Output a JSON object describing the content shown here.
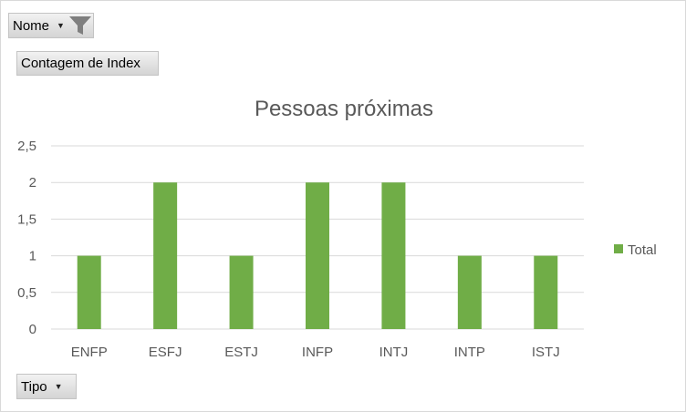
{
  "fields": {
    "nome_label": "Nome",
    "value_label": "Contagem de Index",
    "tipo_label": "Tipo"
  },
  "chart_data": {
    "type": "bar",
    "title": "Pessoas próximas",
    "categories": [
      "ENFP",
      "ESFJ",
      "ESTJ",
      "INFP",
      "INTJ",
      "INTP",
      "ISTJ"
    ],
    "series": [
      {
        "name": "Total",
        "values": [
          1,
          2,
          1,
          2,
          2,
          1,
          1
        ],
        "color": "#70ad47"
      }
    ],
    "ylim": [
      0,
      2.5
    ],
    "yticks": [
      "0",
      "0,5",
      "1",
      "1,5",
      "2",
      "2,5"
    ],
    "grid": true,
    "legend": "right"
  },
  "colors": {
    "gridline": "#d9d9d9",
    "axis_text": "#595959"
  }
}
